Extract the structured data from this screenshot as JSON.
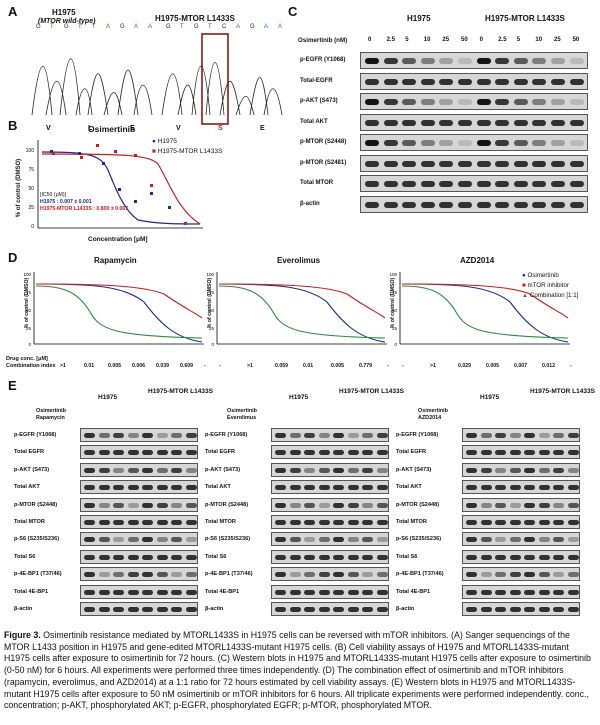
{
  "panels": {
    "a": {
      "letter": "A",
      "left_title": "H1975",
      "left_sub": "(MTOR wild-type)",
      "right_title": "H1975-MTOR L1433S",
      "left_bases": [
        "G",
        "T",
        "G",
        "T",
        "T",
        "A",
        "G",
        "A",
        "A"
      ],
      "right_bases": [
        "G",
        "T",
        "G",
        "T",
        "C",
        "A",
        "G",
        "A",
        "A"
      ],
      "left_aa": [
        "V",
        "L",
        "E"
      ],
      "right_aa": [
        "V",
        "S",
        "E"
      ]
    },
    "b": {
      "letter": "B",
      "title": "Osimertinib",
      "ylabel": "% of control (DMSO)",
      "xlabel": "Concentration [μM]",
      "legend": [
        "H1975",
        "H1975-MTOR L1433S"
      ],
      "ic50_title": "[IC50 (μM)]",
      "ic50_a": "H1975 : 0.007 ± 0.001",
      "ic50_b": "H1975-MTOR L1433S : 0.800 ± 0.067"
    },
    "c": {
      "letter": "C",
      "group_a": "H1975",
      "group_b": "H1975-MTOR L1433S",
      "conc_label": "Osimertinib (nM)",
      "conc": [
        "0",
        "2.5",
        "5",
        "10",
        "25",
        "50",
        "0",
        "2.5",
        "5",
        "10",
        "25",
        "50"
      ],
      "rows": [
        "p-EGFR (Y1068)",
        "Total-EGFR",
        "p-AKT (S473)",
        "Total AKT",
        "p-MTOR (S2448)",
        "p-MTOR (S2481)",
        "Total MTOR",
        "β-actin"
      ]
    },
    "d": {
      "letter": "D",
      "titles": [
        "Rapamycin",
        "Everolimus",
        "AZD2014"
      ],
      "ylabel": "% of control (DMSO)",
      "legend": [
        "Osimertinib",
        "mTOR inhibitor",
        "Combination [1:1]"
      ],
      "row1": "Drug conc. [μM]",
      "row2": "Combination index",
      "ci": [
        [
          "-",
          ">1",
          "0.01",
          "0.005",
          "0.006",
          "0.039",
          "0.609",
          "-"
        ],
        [
          "-",
          ">1",
          "0.059",
          "0.01",
          "0.005",
          "0.779",
          "-"
        ],
        [
          "-",
          ">1",
          "0.029",
          "0.005",
          "0.007",
          "0.012",
          "-"
        ]
      ]
    },
    "e": {
      "letter": "E",
      "groups": [
        "H1975",
        "H1975-MTOR L1433S"
      ],
      "drug_a": "Osimertinib",
      "drug_b": [
        "Rapamycin",
        "Everolimus",
        "AZD2014"
      ],
      "rows": [
        "p-EGFR (Y1068)",
        "Total EGFR",
        "p-AKT (S473)",
        "Total AKT",
        "p-MTOR (S2448)",
        "Total MTOR",
        "p-S6 (S235/S236)",
        "Total S6",
        "p-4E-BP1 (T37/46)",
        "Total 4E-BP1",
        "β-actin"
      ]
    }
  },
  "caption": {
    "lead": "Figure 3.",
    "text": "Osimertinib resistance mediated by MTORL1433S in H1975 cells can be reversed with mTOR inhibitors. (A) Sanger sequencings of the MTOR L1433 position in H1975 and gene-edited MTORL1433S-mutant H1975 cells. (B) Cell viability assays of H1975 and MTORL1433S-mutant H1975 cells after exposure to osimertinib for 72 hours. (C) Western blots in H1975 and MTORL1433S-mutant H1975 cells after exposure to osimertinib (0-50 nM) for 6 hours. All experiments were performed three times independently. (D) The combination effect of osimertinib and mTOR inhibitors (rapamycin, everolimus, and AZD2014) at a 1:1 ratio for 72 hours estimated by cell viability assays. (E) Western blots in H1975 and MTORL1433S-mutant H1975 cells after exposure to 50 nM osimertinib or mTOR inhibitors for 6 hours. All triplicate experiments were performed independently. conc., concentration; p-AKT, phosphorylated AKT; p-EGFR, phosphorylated EGFR; p-MTOR, phosphorylated MTOR."
  },
  "colors": {
    "blue": "#1f2a8c",
    "red": "#c81e1e",
    "green": "#2e8b3d"
  }
}
